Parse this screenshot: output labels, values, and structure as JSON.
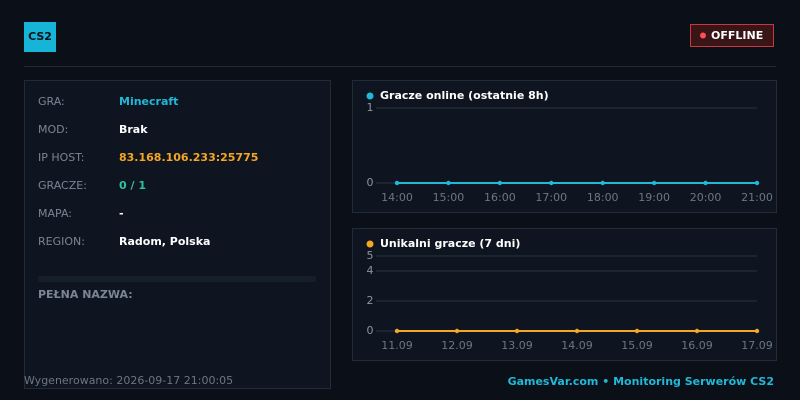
{
  "header": {
    "badge": "CS2",
    "status": "OFFLINE"
  },
  "info": {
    "rows": [
      {
        "label": "GRA:",
        "value": "Minecraft",
        "color": "#22b8d8"
      },
      {
        "label": "MOD:",
        "value": "Brak",
        "color": "#ffffff"
      },
      {
        "label": "IP HOST:",
        "value": "83.168.106.233:25775",
        "color": "#f5a623"
      },
      {
        "label": "GRACZE:",
        "value": "0 / 1",
        "color": "#2ec4a0"
      },
      {
        "label": "MAPA:",
        "value": "-",
        "color": "#ffffff"
      },
      {
        "label": "REGION:",
        "value": "Radom, Polska",
        "color": "#ffffff"
      }
    ],
    "full_name_label": "PEŁNA NAZWA:"
  },
  "chart_data": [
    {
      "type": "line",
      "title": "Gracze online (ostatnie 8h)",
      "color": "#22b8d8",
      "categories": [
        "14:00",
        "15:00",
        "16:00",
        "17:00",
        "18:00",
        "19:00",
        "20:00",
        "21:00"
      ],
      "values": [
        0,
        0,
        0,
        0,
        0,
        0,
        0,
        0
      ],
      "ylim": [
        0,
        1
      ],
      "yticks": [
        0,
        1
      ],
      "grid": true
    },
    {
      "type": "line",
      "title": "Unikalni gracze (7 dni)",
      "color": "#f5a623",
      "categories": [
        "11.09",
        "12.09",
        "13.09",
        "14.09",
        "15.09",
        "16.09",
        "17.09"
      ],
      "values": [
        0,
        0,
        0,
        0,
        0,
        0,
        0
      ],
      "ylim": [
        0,
        5
      ],
      "yticks": [
        0,
        2,
        4,
        5
      ],
      "grid": true
    }
  ],
  "footer": {
    "generated": "Wygenerowano: 2026-09-17 21:00:05",
    "brand": "GamesVar.com • Monitoring Serwerów CS2"
  }
}
